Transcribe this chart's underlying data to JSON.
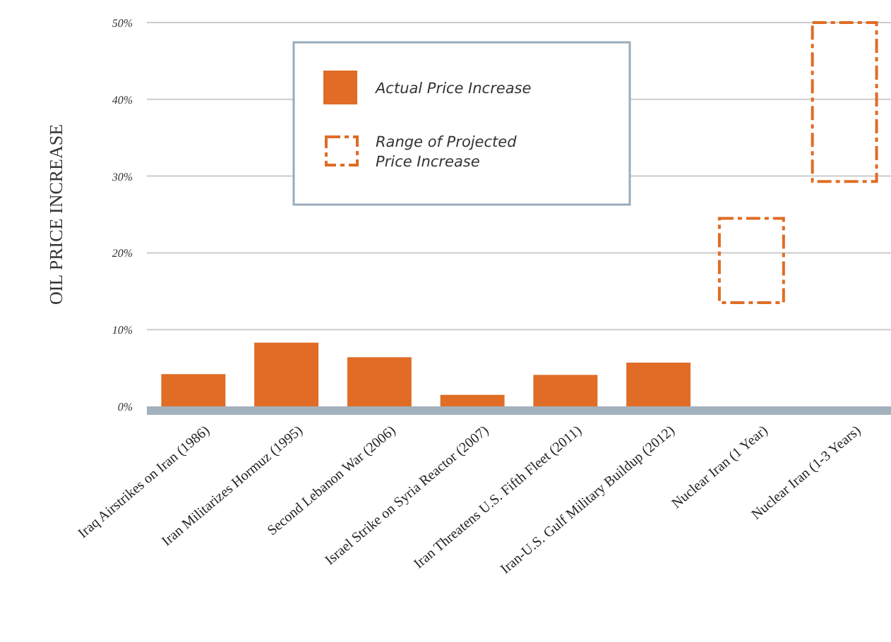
{
  "chart_data": {
    "type": "bar",
    "ylabel": "OIL PRICE INCREASE",
    "categories": [
      "Iraq Airstrikes on Iran (1986)",
      "Iran Militarizes Hormuz (1995)",
      "Second Lebanon War (2006)",
      "Israel Strike on Syria Reactor (2007)",
      "Iran Threatens U.S. Fifth Fleet (2011)",
      "Iran-U.S. Gulf Military Buildup (2012)",
      "Nuclear Iran (1 Year)",
      "Nuclear Iran (1-3 Years)"
    ],
    "series": [
      {
        "name": "Actual Price Increase",
        "color": "#e06c25",
        "values": [
          4.2,
          8.3,
          6.4,
          1.5,
          4.1,
          5.7,
          null,
          null
        ]
      },
      {
        "name": "Range of Projected Price Increase",
        "color": "#e06c25",
        "line_style": "dashed",
        "base": [
          null,
          null,
          null,
          null,
          null,
          null,
          13.5,
          29.3
        ],
        "values": [
          null,
          null,
          null,
          null,
          null,
          null,
          11,
          20.7
        ]
      }
    ],
    "ylim": [
      0,
      50
    ],
    "yticks": [
      {
        "value": 0,
        "label": "0%"
      },
      {
        "value": 10,
        "label": "10%"
      },
      {
        "value": 20,
        "label": "20%"
      },
      {
        "value": 30,
        "label": "30%"
      },
      {
        "value": 40,
        "label": "40%"
      },
      {
        "value": 50,
        "label": "50%"
      }
    ],
    "grid": "y",
    "legend": "top left"
  }
}
